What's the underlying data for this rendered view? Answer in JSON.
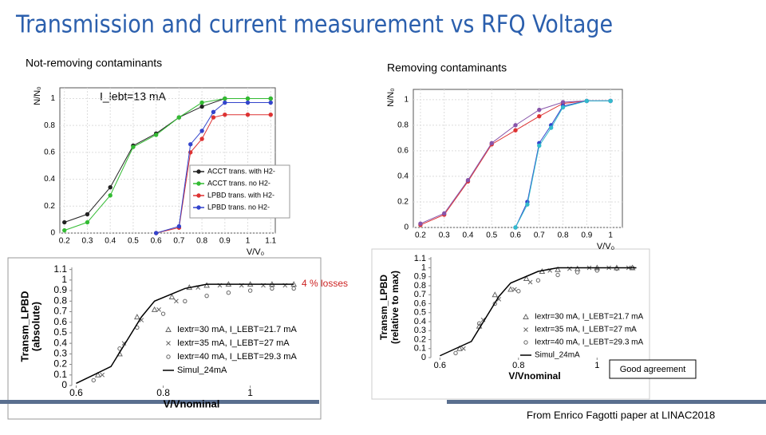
{
  "title": "Transmission and current measurement vs RFQ Voltage",
  "annotations": [
    "4 % losses",
    "Good agreement"
  ],
  "footer": "From Enrico Fagotti paper at LINAC2018",
  "chart_data": [
    {
      "type": "line",
      "title": "Not-removing contaminants",
      "annotation": "I_lebt=13 mA",
      "xlabel": "V/V₀",
      "ylabel": [
        "N/N₀"
      ],
      "xlim": [
        0.18,
        1.12
      ],
      "ylim": [
        0,
        1.08
      ],
      "xticks": [
        0.2,
        0.3,
        0.4,
        0.5,
        0.6,
        0.7,
        0.8,
        0.9,
        1,
        1.1
      ],
      "yticks": [
        0,
        0.2,
        0.4,
        0.6,
        0.8,
        1
      ],
      "grid": true,
      "legend": "lower right",
      "series": [
        {
          "name": "ACCT trans. with H2-",
          "color": "#222222",
          "marker": "circle",
          "x": [
            0.2,
            0.3,
            0.4,
            0.5,
            0.6,
            0.7,
            0.8,
            0.9,
            1,
            1.1
          ],
          "values": [
            0.08,
            0.14,
            0.34,
            0.65,
            0.74,
            0.86,
            0.94,
            1.0,
            1.0,
            1.0
          ]
        },
        {
          "name": "ACCT trans. no H2-",
          "color": "#33bb33",
          "marker": "circle",
          "x": [
            0.2,
            0.3,
            0.4,
            0.5,
            0.6,
            0.7,
            0.8,
            0.9,
            1,
            1.1
          ],
          "values": [
            0.02,
            0.08,
            0.28,
            0.64,
            0.73,
            0.86,
            0.97,
            1.0,
            1.0,
            1.0
          ]
        },
        {
          "name": "LPBD trans. with H2-",
          "color": "#dd3333",
          "marker": "circle",
          "x": [
            0.6,
            0.7,
            0.75,
            0.8,
            0.85,
            0.9,
            1,
            1.1
          ],
          "values": [
            0.0,
            0.04,
            0.6,
            0.7,
            0.86,
            0.88,
            0.88,
            0.88
          ]
        },
        {
          "name": "LPBD trans. no H2-",
          "color": "#3344cc",
          "marker": "circle",
          "x": [
            0.6,
            0.7,
            0.75,
            0.8,
            0.85,
            0.9,
            1,
            1.1
          ],
          "values": [
            0.0,
            0.05,
            0.66,
            0.76,
            0.9,
            0.97,
            0.97,
            0.97
          ]
        }
      ]
    },
    {
      "type": "line",
      "title": "Removing contaminants",
      "xlabel": "V/V₀",
      "ylabel": [
        "N/N₀"
      ],
      "xlim": [
        0.17,
        1.05
      ],
      "ylim": [
        0,
        1.08
      ],
      "xticks": [
        0.2,
        0.3,
        0.4,
        0.5,
        0.6,
        0.7,
        0.8,
        0.9,
        1
      ],
      "yticks": [
        0,
        0.2,
        0.4,
        0.6,
        0.8,
        1
      ],
      "grid": true,
      "series": [
        {
          "color": "#dd3333",
          "marker": "circle",
          "x": [
            0.2,
            0.3,
            0.4,
            0.5,
            0.6,
            0.7,
            0.8,
            0.9,
            1
          ],
          "values": [
            0.02,
            0.1,
            0.36,
            0.65,
            0.76,
            0.87,
            0.97,
            0.99,
            0.99
          ]
        },
        {
          "color": "#8855aa",
          "marker": "circle",
          "x": [
            0.2,
            0.3,
            0.4,
            0.5,
            0.6,
            0.7,
            0.8,
            0.9,
            1
          ],
          "values": [
            0.03,
            0.11,
            0.37,
            0.66,
            0.8,
            0.92,
            0.98,
            0.99,
            0.99
          ]
        },
        {
          "color": "#3344cc",
          "marker": "circle",
          "x": [
            0.6,
            0.65,
            0.7,
            0.75,
            0.8,
            0.9,
            1
          ],
          "values": [
            0.0,
            0.2,
            0.66,
            0.8,
            0.95,
            0.99,
            0.99
          ]
        },
        {
          "color": "#33bbcc",
          "marker": "circle",
          "x": [
            0.6,
            0.65,
            0.7,
            0.75,
            0.8,
            0.9,
            1
          ],
          "values": [
            0.0,
            0.18,
            0.64,
            0.78,
            0.94,
            0.99,
            0.99
          ]
        }
      ]
    },
    {
      "type": "line",
      "xlabel": "V/Vnominal",
      "ylabel": [
        "Transm_LPBD",
        "(absolute)"
      ],
      "xlim": [
        0.59,
        1.14
      ],
      "ylim": [
        0,
        1.12
      ],
      "xticks": [
        0.6,
        0.8,
        1
      ],
      "yticks": [
        0,
        0.1,
        0.2,
        0.3,
        0.4,
        0.5,
        0.6,
        0.7,
        0.8,
        0.9,
        1,
        1.1
      ],
      "grid": false,
      "legend": "lower right",
      "series": [
        {
          "name": "Iextr=30 mA, I_LEBT=21.7 mA",
          "color": "#666666",
          "marker": "triangle",
          "x": [
            0.65,
            0.7,
            0.74,
            0.78,
            0.82,
            0.86,
            0.9,
            0.95,
            1.0,
            1.05,
            1.1
          ],
          "values": [
            0.1,
            0.3,
            0.65,
            0.72,
            0.84,
            0.93,
            0.95,
            0.96,
            0.96,
            0.96,
            0.96
          ]
        },
        {
          "name": "Iextr=35 mA, I_LEBT=27 mA",
          "color": "#666666",
          "marker": "x",
          "x": [
            0.66,
            0.71,
            0.75,
            0.79,
            0.83,
            0.88,
            0.93,
            0.98,
            1.03,
            1.08
          ],
          "values": [
            0.1,
            0.4,
            0.62,
            0.72,
            0.8,
            0.93,
            0.95,
            0.95,
            0.95,
            0.95
          ]
        },
        {
          "name": "Iextr=40 mA, I_LEBT=29.3 mA",
          "color": "#666666",
          "marker": "circle",
          "x": [
            0.64,
            0.7,
            0.74,
            0.8,
            0.85,
            0.9,
            0.95,
            1.0,
            1.05,
            1.1
          ],
          "values": [
            0.05,
            0.35,
            0.55,
            0.68,
            0.8,
            0.85,
            0.88,
            0.9,
            0.92,
            0.92
          ]
        },
        {
          "name": "Simul_24mA",
          "color": "#000000",
          "marker": "none",
          "x": [
            0.6,
            0.65,
            0.68,
            0.75,
            0.78,
            0.85,
            0.9,
            1.1
          ],
          "values": [
            0.02,
            0.12,
            0.18,
            0.65,
            0.8,
            0.92,
            0.96,
            0.96
          ]
        }
      ]
    },
    {
      "type": "line",
      "xlabel": "V/Vnominal",
      "ylabel": [
        "Transm_LPBD",
        "(relative to max)"
      ],
      "xlim": [
        0.577,
        1.105
      ],
      "ylim": [
        0,
        1.12
      ],
      "xticks": [
        0.6,
        0.8,
        1
      ],
      "yticks": [
        0,
        0.1,
        0.2,
        0.3,
        0.4,
        0.5,
        0.6,
        0.7,
        0.8,
        0.9,
        1,
        1.1
      ],
      "grid": false,
      "legend": "lower right",
      "series": [
        {
          "name": "Iextr=30 mA, I_LEBT=21.7 mA",
          "color": "#666666",
          "marker": "triangle",
          "x": [
            0.65,
            0.7,
            0.74,
            0.78,
            0.82,
            0.86,
            0.9,
            0.95,
            1.0,
            1.05,
            1.09
          ],
          "values": [
            0.1,
            0.35,
            0.7,
            0.76,
            0.88,
            0.96,
            0.98,
            0.99,
            1.0,
            1.0,
            1.0
          ]
        },
        {
          "name": "Iextr=35 mA, I_LEBT=27 mA",
          "color": "#666666",
          "marker": "x",
          "x": [
            0.66,
            0.71,
            0.75,
            0.79,
            0.83,
            0.88,
            0.93,
            0.98,
            1.03,
            1.08
          ],
          "values": [
            0.1,
            0.42,
            0.65,
            0.76,
            0.84,
            0.97,
            0.99,
            1.0,
            1.0,
            1.0
          ]
        },
        {
          "name": "Iextr=40 mA, I_LEBT=29.3 mA",
          "color": "#666666",
          "marker": "circle",
          "x": [
            0.64,
            0.7,
            0.74,
            0.8,
            0.85,
            0.9,
            0.95,
            1.0,
            1.05,
            1.09
          ],
          "values": [
            0.05,
            0.38,
            0.6,
            0.74,
            0.86,
            0.92,
            0.95,
            0.97,
            0.99,
            1.0
          ]
        },
        {
          "name": "Simul_24mA",
          "color": "#000000",
          "marker": "none",
          "x": [
            0.6,
            0.65,
            0.68,
            0.75,
            0.78,
            0.85,
            0.9,
            1.1
          ],
          "values": [
            0.02,
            0.12,
            0.18,
            0.68,
            0.83,
            0.96,
            1.0,
            1.0
          ]
        }
      ]
    }
  ]
}
